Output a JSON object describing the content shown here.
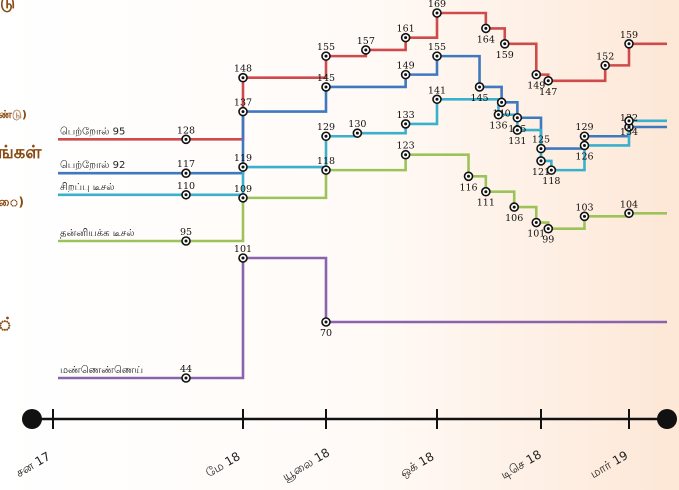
{
  "fragments": {
    "top": "டு",
    "left_1": "ண்டு)",
    "left_2": "ங்கள்",
    "left_3": "ை)",
    "left_4": "்"
  },
  "chart_data": {
    "type": "line",
    "step": true,
    "title": "",
    "xlabel": "",
    "ylabel": "",
    "x_ticks": [
      "சன 17",
      "மே 18",
      "யூலை 18",
      "ஒக் 18",
      "டிசெ 18",
      "மார் 19"
    ],
    "colors": {
      "petrol95": "#cf4a4a",
      "petrol92": "#3e79c0",
      "superdiesel": "#3ab0cc",
      "diesel": "#9cc35a",
      "kerosene": "#8a63ad",
      "axis": "#111111"
    },
    "series": [
      {
        "id": "petrol95",
        "name": "பெற்றோல் 95",
        "color": "#cf4a4a",
        "points": [
          {
            "x": "2018-04-01",
            "y": 128,
            "label": "128"
          },
          {
            "x": "2018-05-10",
            "y": 148,
            "label": "148"
          },
          {
            "x": "2018-07-10",
            "y": 155,
            "label": "155"
          },
          {
            "x": "2018-08-12",
            "y": 157,
            "label": "157"
          },
          {
            "x": "2018-09-14",
            "y": 161,
            "label": "161"
          },
          {
            "x": "2018-10-10",
            "y": 169,
            "label": "169"
          },
          {
            "x": "2018-11-10",
            "y": 164,
            "label": "164"
          },
          {
            "x": "2018-11-22",
            "y": 159,
            "label": "159"
          },
          {
            "x": "2018-12-12",
            "y": 149,
            "label": "149"
          },
          {
            "x": "2018-12-22",
            "y": 147,
            "label": "147"
          },
          {
            "x": "2019-02-15",
            "y": 152,
            "label": "152"
          },
          {
            "x": "2019-03-10",
            "y": 159,
            "label": "159"
          }
        ]
      },
      {
        "id": "petrol92",
        "name": "பெற்றோல் 92",
        "color": "#3e79c0",
        "points": [
          {
            "x": "2018-04-01",
            "y": 117,
            "label": "117"
          },
          {
            "x": "2018-05-10",
            "y": 137,
            "label": "137"
          },
          {
            "x": "2018-07-10",
            "y": 145,
            "label": "145"
          },
          {
            "x": "2018-09-14",
            "y": 149,
            "label": "149"
          },
          {
            "x": "2018-10-10",
            "y": 155,
            "label": "155"
          },
          {
            "x": "2018-11-06",
            "y": 145,
            "label": "145"
          },
          {
            "x": "2018-11-20",
            "y": 140,
            "label": "140"
          },
          {
            "x": "2018-11-30",
            "y": 135,
            "label": "135"
          },
          {
            "x": "2018-12-15",
            "y": 125,
            "label": "125"
          },
          {
            "x": "2019-01-26",
            "y": 129,
            "label": "129"
          },
          {
            "x": "2019-03-10",
            "y": 132,
            "label": "132"
          }
        ]
      },
      {
        "id": "superdiesel",
        "name": "சிறப்பு டீசல்",
        "color": "#3ab0cc",
        "points": [
          {
            "x": "2018-04-01",
            "y": 110,
            "label": "110"
          },
          {
            "x": "2018-05-10",
            "y": 119,
            "label": "119"
          },
          {
            "x": "2018-07-10",
            "y": 129,
            "label": "129"
          },
          {
            "x": "2018-08-05",
            "y": 130,
            "label": "130"
          },
          {
            "x": "2018-09-14",
            "y": 133,
            "label": "133"
          },
          {
            "x": "2018-10-10",
            "y": 141,
            "label": "141"
          },
          {
            "x": "2018-11-18",
            "y": 136,
            "label": "136"
          },
          {
            "x": "2018-11-30",
            "y": 131,
            "label": "131"
          },
          {
            "x": "2018-12-15",
            "y": 121,
            "label": "121"
          },
          {
            "x": "2018-12-25",
            "y": 118,
            "label": "118"
          },
          {
            "x": "2019-01-26",
            "y": 126,
            "label": "126"
          },
          {
            "x": "2019-03-10",
            "y": 134,
            "label": "134"
          }
        ]
      },
      {
        "id": "diesel",
        "name": "தன்னியக்க டீசல்",
        "color": "#9cc35a",
        "points": [
          {
            "x": "2018-04-01",
            "y": 95,
            "label": "95"
          },
          {
            "x": "2018-05-10",
            "y": 109,
            "label": "109"
          },
          {
            "x": "2018-07-10",
            "y": 118,
            "label": "118"
          },
          {
            "x": "2018-09-14",
            "y": 123,
            "label": "123"
          },
          {
            "x": "2018-10-30",
            "y": 116,
            "label": "116"
          },
          {
            "x": "2018-11-10",
            "y": 111,
            "label": "111"
          },
          {
            "x": "2018-11-28",
            "y": 106,
            "label": "106"
          },
          {
            "x": "2018-12-12",
            "y": 101,
            "label": "101"
          },
          {
            "x": "2018-12-22",
            "y": 99,
            "label": "99"
          },
          {
            "x": "2019-01-26",
            "y": 103,
            "label": "103"
          },
          {
            "x": "2019-03-10",
            "y": 104,
            "label": "104"
          }
        ]
      },
      {
        "id": "kerosene",
        "name": "மண்ணெண்ணெய்",
        "color": "#8a63ad",
        "points": [
          {
            "x": "2018-04-01",
            "y": 44,
            "label": "44"
          },
          {
            "x": "2018-05-10",
            "y": 101,
            "label": "101"
          },
          {
            "x": "2018-07-10",
            "y": 70,
            "label": "70"
          }
        ]
      }
    ]
  }
}
